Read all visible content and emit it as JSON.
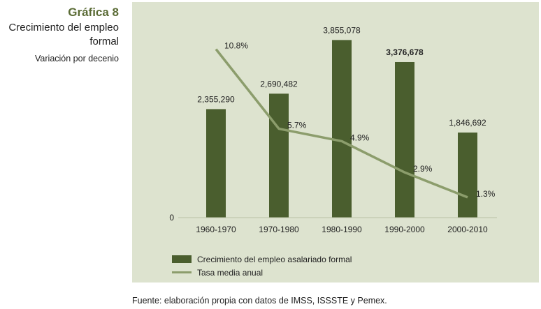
{
  "header": {
    "title": "Gráfica 8",
    "subtitle_line1": "Crecimiento del empleo",
    "subtitle_line2": "formal",
    "caption": "Variación por decenio"
  },
  "colors": {
    "panel_bg": "#dde3cf",
    "bar": "#4a5e2e",
    "line": "#8c9d6c",
    "title": "#5a6b35"
  },
  "chart_data": {
    "type": "bar",
    "categories": [
      "1960-1970",
      "1970-1980",
      "1980-1990",
      "1990-2000",
      "2000-2010"
    ],
    "series": [
      {
        "name": "Crecimiento del empleo asalariado formal",
        "type": "bar",
        "values": [
          2355290,
          2690482,
          3855078,
          3376678,
          1846692
        ],
        "labels": [
          "2,355,290",
          "2,690,482",
          "3,855,078",
          "3,376,678",
          "1,846,692"
        ]
      },
      {
        "name": "Tasa media anual",
        "type": "line",
        "values": [
          10.8,
          5.7,
          4.9,
          2.9,
          1.3
        ],
        "labels": [
          "10.8%",
          "5.7%",
          "4.9%",
          "2.9%",
          "1.3%"
        ]
      }
    ],
    "y_tick_label": "0",
    "ylim": [
      0,
      4300000
    ],
    "y2lim": [
      0,
      12.7
    ],
    "grid": false,
    "legend_position": "bottom-left"
  },
  "source": "Fuente: elaboración propia con datos de IMSS, ISSSTE y Pemex."
}
